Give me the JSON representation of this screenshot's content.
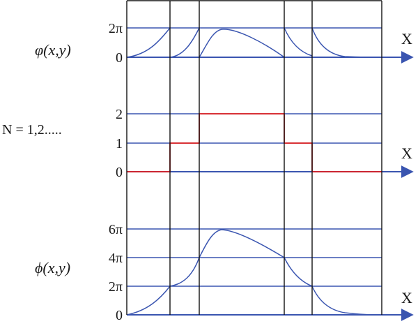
{
  "colors": {
    "grid": "#3a55b0",
    "curve": "#3a55b0",
    "step": "#e02020",
    "divider": "#111111",
    "text": "#1a1a1a"
  },
  "panels": {
    "top": {
      "side_label": "φ(x,y)",
      "tick_labels": [
        "2π",
        "0"
      ],
      "axis_label": "X"
    },
    "middle": {
      "side_label": "N = 1,2.....",
      "tick_labels": [
        "2",
        "1",
        "0"
      ],
      "axis_label": "X"
    },
    "bottom": {
      "side_label": "ϕ(x,y)",
      "tick_labels": [
        "6π",
        "4π",
        "2π",
        "0"
      ],
      "axis_label": "X"
    }
  }
}
